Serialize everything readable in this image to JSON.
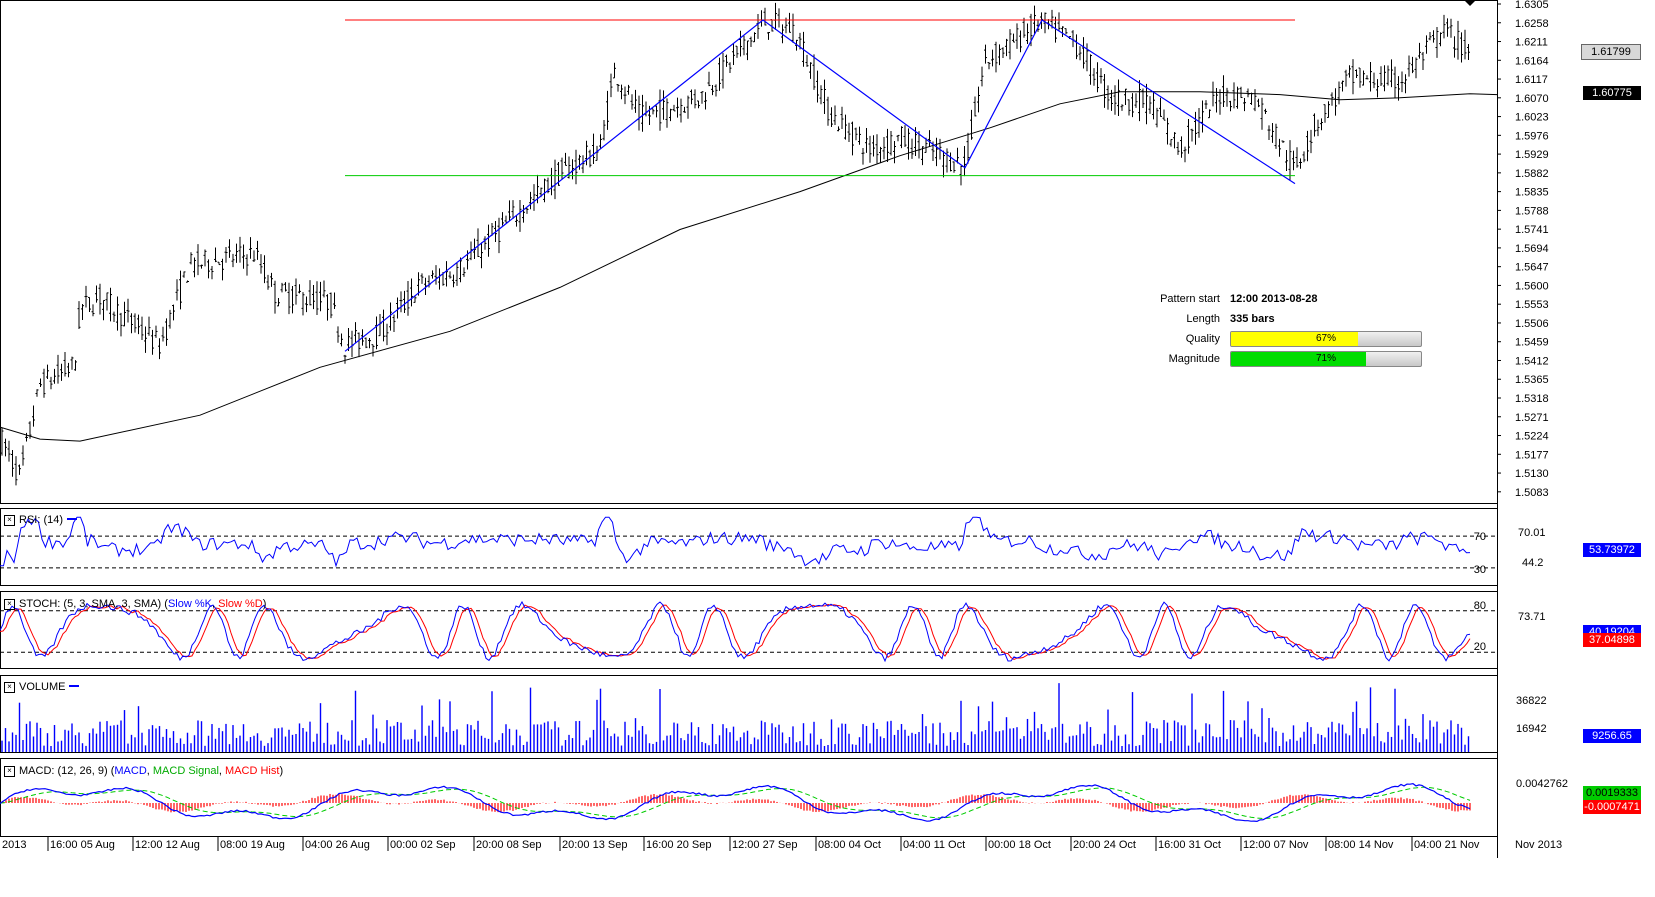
{
  "chart_data": {
    "type": "line",
    "main": {
      "price_axis": [
        "1.6305",
        "1.6258",
        "1.6211",
        "1.6164",
        "1.6117",
        "1.6070",
        "1.6023",
        "1.5976",
        "1.5929",
        "1.5882",
        "1.5835",
        "1.5788",
        "1.5741",
        "1.5694",
        "1.5647",
        "1.5600",
        "1.5553",
        "1.5506",
        "1.5459",
        "1.5412",
        "1.5365",
        "1.5318",
        "1.5271",
        "1.5224",
        "1.5177",
        "1.5130",
        "1.5083"
      ],
      "ylim": [
        1.5065,
        1.6305
      ],
      "current_price": "1.61799",
      "ma_value": "1.60775",
      "resistance": 1.6265,
      "support": 1.5875,
      "pattern_info": {
        "pattern_start_label": "Pattern start",
        "pattern_start": "12:00 2013-08-28",
        "length_label": "Length",
        "length": "335 bars",
        "quality_label": "Quality",
        "quality": "67%",
        "quality_value": 0.67,
        "magnitude_label": "Magnitude",
        "magnitude": "71%",
        "magnitude_value": 0.71
      }
    },
    "x_labels": [
      "2013",
      "16:00 05 Aug",
      "12:00 12 Aug",
      "08:00 19 Aug",
      "04:00 26 Aug",
      "00:00 02 Sep",
      "20:00 08 Sep",
      "20:00 13 Sep",
      "16:00 20 Sep",
      "12:00 27 Sep",
      "08:00 04 Oct",
      "04:00 11 Oct",
      "00:00 18 Oct",
      "20:00 24 Oct",
      "16:00 31 Oct",
      "12:00 07 Nov",
      "08:00 14 Nov",
      "04:00 21 Nov",
      "Nov 2013"
    ],
    "rsi": {
      "title": "RSI: (14)",
      "levels": [
        "70",
        "30"
      ],
      "axis_labels": [
        "70.01",
        "44.2"
      ],
      "current": "53.73972",
      "ylim": [
        0,
        100
      ]
    },
    "stoch": {
      "title_prefix": "STOCH: (5, 3, SMA, 3, SMA)",
      "k_name": "Slow %K",
      "d_name": "Slow %D",
      "levels": [
        "80",
        "20"
      ],
      "axis_label": "73.71",
      "current_k": "40.19204",
      "current_d": "37.04898"
    },
    "volume": {
      "title": "VOLUME",
      "axis_labels": [
        "36822",
        "16942"
      ],
      "current": "9256.65"
    },
    "macd": {
      "title_prefix": "MACD: (12, 26, 9)",
      "macd_name": "MACD",
      "signal_name": "MACD Signal",
      "hist_name": "MACD Hist",
      "axis_label": "0.0042762",
      "current_macd": "0.0019333",
      "current_hist": "-0.0007471"
    }
  },
  "colors": {
    "candle": "#000000",
    "ma": "#000000",
    "pattern": "#0000ff",
    "resistance": "#ff0000",
    "support": "#00cc00",
    "rsi": "#0000ff",
    "stoch_k": "#0000ff",
    "stoch_d": "#ff0000",
    "volume": "#0000ff",
    "macd": "#0000ff",
    "signal": "#00cc00",
    "hist": "#ff0000",
    "quality_fill": "#ffff00",
    "magnitude_fill": "#00dd00"
  }
}
